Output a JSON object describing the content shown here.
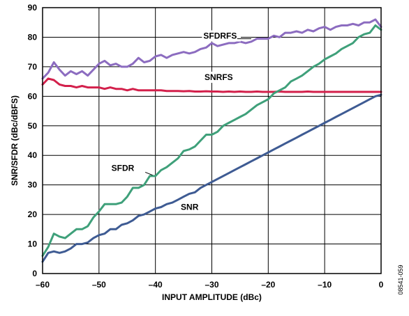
{
  "chart_data": {
    "type": "line",
    "xlabel": "INPUT AMPLITUDE (dBc)",
    "ylabel": "SNR/SFDR (dBc/dBFS)",
    "xlim": [
      -60,
      0
    ],
    "ylim": [
      0,
      90
    ],
    "xticks": [
      -60,
      -50,
      -40,
      -30,
      -20,
      -10,
      0
    ],
    "yticks": [
      0,
      10,
      20,
      30,
      40,
      50,
      60,
      70,
      80,
      90
    ],
    "xtick_labels": [
      "–60",
      "–50",
      "–40",
      "–30",
      "–20",
      "–10",
      "0"
    ],
    "ytick_labels": [
      "0",
      "10",
      "20",
      "30",
      "40",
      "50",
      "60",
      "70",
      "80",
      "90"
    ],
    "grid": true,
    "figure_id": "08541-059",
    "series": [
      {
        "name": "SFDRFS",
        "color": "#8c6cc0",
        "x": [
          -60,
          -59,
          -58,
          -57,
          -56,
          -55,
          -54,
          -53,
          -52,
          -51,
          -50,
          -49,
          -48,
          -47,
          -46,
          -45,
          -44,
          -43,
          -42,
          -41,
          -40,
          -39,
          -38,
          -37,
          -36,
          -35,
          -34,
          -33,
          -32,
          -31,
          -30,
          -29,
          -28,
          -27,
          -26,
          -25,
          -24,
          -23,
          -22,
          -21,
          -20,
          -19,
          -18,
          -17,
          -16,
          -15,
          -14,
          -13,
          -12,
          -11,
          -10,
          -9,
          -8,
          -7,
          -6,
          -5,
          -4,
          -3,
          -2,
          -1,
          0
        ],
        "y": [
          66,
          68,
          71.5,
          69,
          67,
          68.5,
          67.5,
          68.5,
          67,
          69,
          71,
          72,
          70.5,
          71,
          70,
          70,
          71,
          73,
          71.5,
          72,
          73.5,
          74,
          73,
          74,
          74.5,
          75,
          74.5,
          75,
          76,
          76.5,
          78,
          77,
          77.5,
          78,
          78,
          78.5,
          78,
          78.5,
          79.5,
          79.5,
          79.5,
          80.5,
          80,
          81.5,
          81.5,
          82,
          81.5,
          82.5,
          82,
          83,
          83.5,
          82.5,
          83.5,
          84,
          84,
          84.5,
          84,
          85,
          85,
          86,
          83.5
        ]
      },
      {
        "name": "SNRFS",
        "color": "#d3204b",
        "x": [
          -60,
          -59,
          -58,
          -57,
          -56,
          -55,
          -54,
          -53,
          -52,
          -51,
          -50,
          -49,
          -48,
          -47,
          -46,
          -45,
          -44,
          -43,
          -42,
          -41,
          -40,
          -39,
          -38,
          -37,
          -36,
          -35,
          -34,
          -33,
          -32,
          -31,
          -30,
          -29,
          -28,
          -27,
          -26,
          -25,
          -24,
          -23,
          -22,
          -21,
          -20,
          -19,
          -18,
          -17,
          -16,
          -15,
          -14,
          -13,
          -12,
          -11,
          -10,
          -9,
          -8,
          -7,
          -6,
          -5,
          -4,
          -3,
          -2,
          -1,
          0
        ],
        "y": [
          64,
          66,
          65.5,
          64,
          63.5,
          63.5,
          63,
          63.5,
          63,
          63,
          63,
          62.5,
          63,
          62.5,
          62.5,
          62,
          62.5,
          62,
          62,
          62,
          62,
          62,
          61.8,
          61.8,
          61.8,
          61.7,
          61.8,
          61.6,
          61.6,
          61.7,
          61.6,
          61.6,
          61.5,
          61.6,
          61.5,
          61.6,
          61.5,
          61.5,
          61.6,
          61.5,
          61.5,
          61.5,
          61.6,
          61.5,
          61.5,
          61.5,
          61.5,
          61.6,
          61.5,
          61.5,
          61.5,
          61.5,
          61.5,
          61.5,
          61.5,
          61.5,
          61.5,
          61.5,
          61.5,
          61.5,
          61.5
        ]
      },
      {
        "name": "SFDR",
        "color": "#3fa07a",
        "x": [
          -60,
          -59,
          -58,
          -57,
          -56,
          -55,
          -54,
          -53,
          -52,
          -51,
          -50,
          -49,
          -48,
          -47,
          -46,
          -45,
          -44,
          -43,
          -42,
          -41,
          -40,
          -39,
          -38,
          -37,
          -36,
          -35,
          -34,
          -33,
          -32,
          -31,
          -30,
          -29,
          -28,
          -27,
          -26,
          -25,
          -24,
          -23,
          -22,
          -21,
          -20,
          -19,
          -18,
          -17,
          -16,
          -15,
          -14,
          -13,
          -12,
          -11,
          -10,
          -9,
          -8,
          -7,
          -6,
          -5,
          -4,
          -3,
          -2,
          -1,
          0
        ],
        "y": [
          6,
          9,
          13.5,
          12.5,
          12,
          13.5,
          15,
          15,
          16,
          19,
          21,
          23.5,
          23.5,
          23.5,
          24,
          26,
          29,
          29,
          30,
          33,
          33,
          35,
          36,
          37.5,
          39,
          41.5,
          42,
          43,
          45,
          47,
          47,
          48,
          50,
          51,
          52,
          53,
          54,
          55.5,
          57,
          58,
          59,
          61,
          62,
          63,
          65,
          66,
          67,
          68.5,
          70,
          71,
          72.5,
          73.5,
          74.5,
          76,
          77,
          78,
          80,
          81,
          81.5,
          84,
          82.5
        ]
      },
      {
        "name": "SNR",
        "color": "#3e5b93",
        "x": [
          -60,
          -59,
          -58,
          -57,
          -56,
          -55,
          -54,
          -53,
          -52,
          -51,
          -50,
          -49,
          -48,
          -47,
          -46,
          -45,
          -44,
          -43,
          -42,
          -41,
          -40,
          -39,
          -38,
          -37,
          -36,
          -35,
          -34,
          -33,
          -32,
          -31,
          -30,
          -29,
          -28,
          -27,
          -26,
          -25,
          -24,
          -23,
          -22,
          -21,
          -20,
          -19,
          -18,
          -17,
          -16,
          -15,
          -14,
          -13,
          -12,
          -11,
          -10,
          -9,
          -8,
          -7,
          -6,
          -5,
          -4,
          -3,
          -2,
          -1,
          0
        ],
        "y": [
          4,
          7,
          7.5,
          7,
          7.5,
          8.5,
          10,
          10,
          10.5,
          12,
          13,
          13.5,
          15,
          15,
          16.5,
          17,
          18,
          19.5,
          20,
          21,
          22,
          22.5,
          23.5,
          24,
          25,
          26,
          27,
          27.5,
          29,
          30,
          31,
          32,
          33,
          34,
          35,
          36,
          37,
          38,
          39,
          40,
          41,
          42,
          43,
          44,
          45,
          46,
          47,
          48,
          49,
          50,
          51,
          52,
          53,
          54,
          55,
          56,
          57,
          58,
          59,
          60,
          60.5
        ]
      }
    ]
  }
}
